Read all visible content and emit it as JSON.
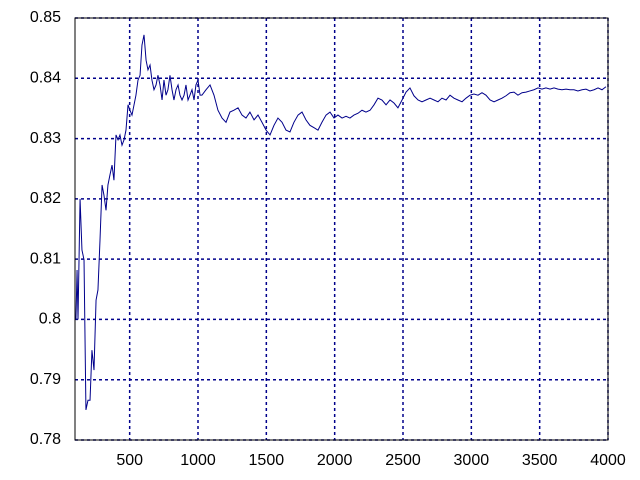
{
  "chart_data": {
    "type": "line",
    "x": [
      107,
      115,
      122,
      137,
      151,
      166,
      180,
      195,
      210,
      224,
      239,
      254,
      268,
      283,
      298,
      312,
      327,
      341,
      356,
      371,
      385,
      400,
      415,
      429,
      444,
      459,
      473,
      488,
      502,
      517,
      532,
      546,
      561,
      576,
      590,
      605,
      620,
      634,
      649,
      663,
      678,
      693,
      707,
      722,
      737,
      751,
      766,
      780,
      795,
      810,
      824,
      839,
      854,
      868,
      883,
      898,
      912,
      927,
      941,
      956,
      971,
      985,
      1000,
      1015,
      1029,
      1059,
      1088,
      1117,
      1146,
      1176,
      1205,
      1234,
      1263,
      1293,
      1322,
      1351,
      1380,
      1410,
      1439,
      1468,
      1498,
      1527,
      1556,
      1585,
      1615,
      1644,
      1673,
      1702,
      1732,
      1761,
      1790,
      1819,
      1849,
      1878,
      1907,
      1937,
      1966,
      1995,
      2024,
      2054,
      2083,
      2112,
      2141,
      2171,
      2200,
      2229,
      2259,
      2288,
      2317,
      2346,
      2376,
      2405,
      2434,
      2463,
      2493,
      2522,
      2551,
      2580,
      2610,
      2639,
      2668,
      2698,
      2727,
      2756,
      2785,
      2815,
      2844,
      2873,
      2902,
      2932,
      2961,
      2990,
      3019,
      3049,
      3078,
      3107,
      3137,
      3166,
      3195,
      3224,
      3254,
      3283,
      3312,
      3341,
      3371,
      3400,
      3429,
      3458,
      3488,
      3517,
      3546,
      3576,
      3605,
      3634,
      3663,
      3693,
      3722,
      3751,
      3780,
      3810,
      3839,
      3868,
      3898,
      3927,
      3956,
      3985
    ],
    "values": [
      0.8,
      0.8082,
      0.8,
      0.82,
      0.8115,
      0.8099,
      0.785,
      0.7866,
      0.7866,
      0.7949,
      0.7916,
      0.8032,
      0.8049,
      0.8132,
      0.8223,
      0.8206,
      0.8181,
      0.8223,
      0.824,
      0.8256,
      0.8231,
      0.8306,
      0.8298,
      0.8306,
      0.8289,
      0.8298,
      0.8314,
      0.8356,
      0.8347,
      0.8339,
      0.8356,
      0.8372,
      0.8397,
      0.8405,
      0.8455,
      0.8472,
      0.843,
      0.8414,
      0.8422,
      0.8397,
      0.8381,
      0.8389,
      0.8405,
      0.8389,
      0.8364,
      0.8397,
      0.8372,
      0.8381,
      0.8405,
      0.8381,
      0.8364,
      0.8381,
      0.8389,
      0.8372,
      0.8364,
      0.8372,
      0.8389,
      0.8364,
      0.8372,
      0.8381,
      0.8364,
      0.8389,
      0.8397,
      0.8372,
      0.8372,
      0.8381,
      0.8389,
      0.8372,
      0.8347,
      0.8334,
      0.8327,
      0.8344,
      0.8347,
      0.8351,
      0.8339,
      0.8334,
      0.8344,
      0.8331,
      0.8339,
      0.8327,
      0.8314,
      0.8306,
      0.8322,
      0.8334,
      0.8327,
      0.8314,
      0.8311,
      0.8327,
      0.8339,
      0.8344,
      0.8331,
      0.8322,
      0.8318,
      0.8314,
      0.8327,
      0.8339,
      0.8344,
      0.8334,
      0.8339,
      0.8334,
      0.8337,
      0.8334,
      0.8339,
      0.8342,
      0.8347,
      0.8344,
      0.8347,
      0.8356,
      0.8367,
      0.8364,
      0.8356,
      0.8364,
      0.8359,
      0.8351,
      0.8364,
      0.8377,
      0.8384,
      0.8371,
      0.8364,
      0.8361,
      0.8364,
      0.8367,
      0.8364,
      0.8361,
      0.8367,
      0.8364,
      0.8372,
      0.8367,
      0.8364,
      0.8361,
      0.8367,
      0.8372,
      0.8374,
      0.8372,
      0.8376,
      0.8372,
      0.8364,
      0.8361,
      0.8364,
      0.8367,
      0.8371,
      0.8376,
      0.8377,
      0.8372,
      0.8376,
      0.8377,
      0.8379,
      0.8381,
      0.8384,
      0.8382,
      0.8384,
      0.8382,
      0.8384,
      0.8382,
      0.8381,
      0.8382,
      0.8381,
      0.8381,
      0.8379,
      0.8381,
      0.8382,
      0.8379,
      0.8381,
      0.8384,
      0.8381,
      0.8386
    ],
    "color": "#00008b",
    "grid": true,
    "grid_color": "#00008b",
    "xlim": [
      100,
      4000
    ],
    "xticks": [
      500,
      1000,
      1500,
      2000,
      2500,
      3000,
      3500,
      4000
    ],
    "ylim": [
      0.78,
      0.85
    ],
    "yticks": [
      0.78,
      0.79,
      0.8,
      0.81,
      0.82,
      0.83,
      0.84,
      0.85
    ]
  }
}
